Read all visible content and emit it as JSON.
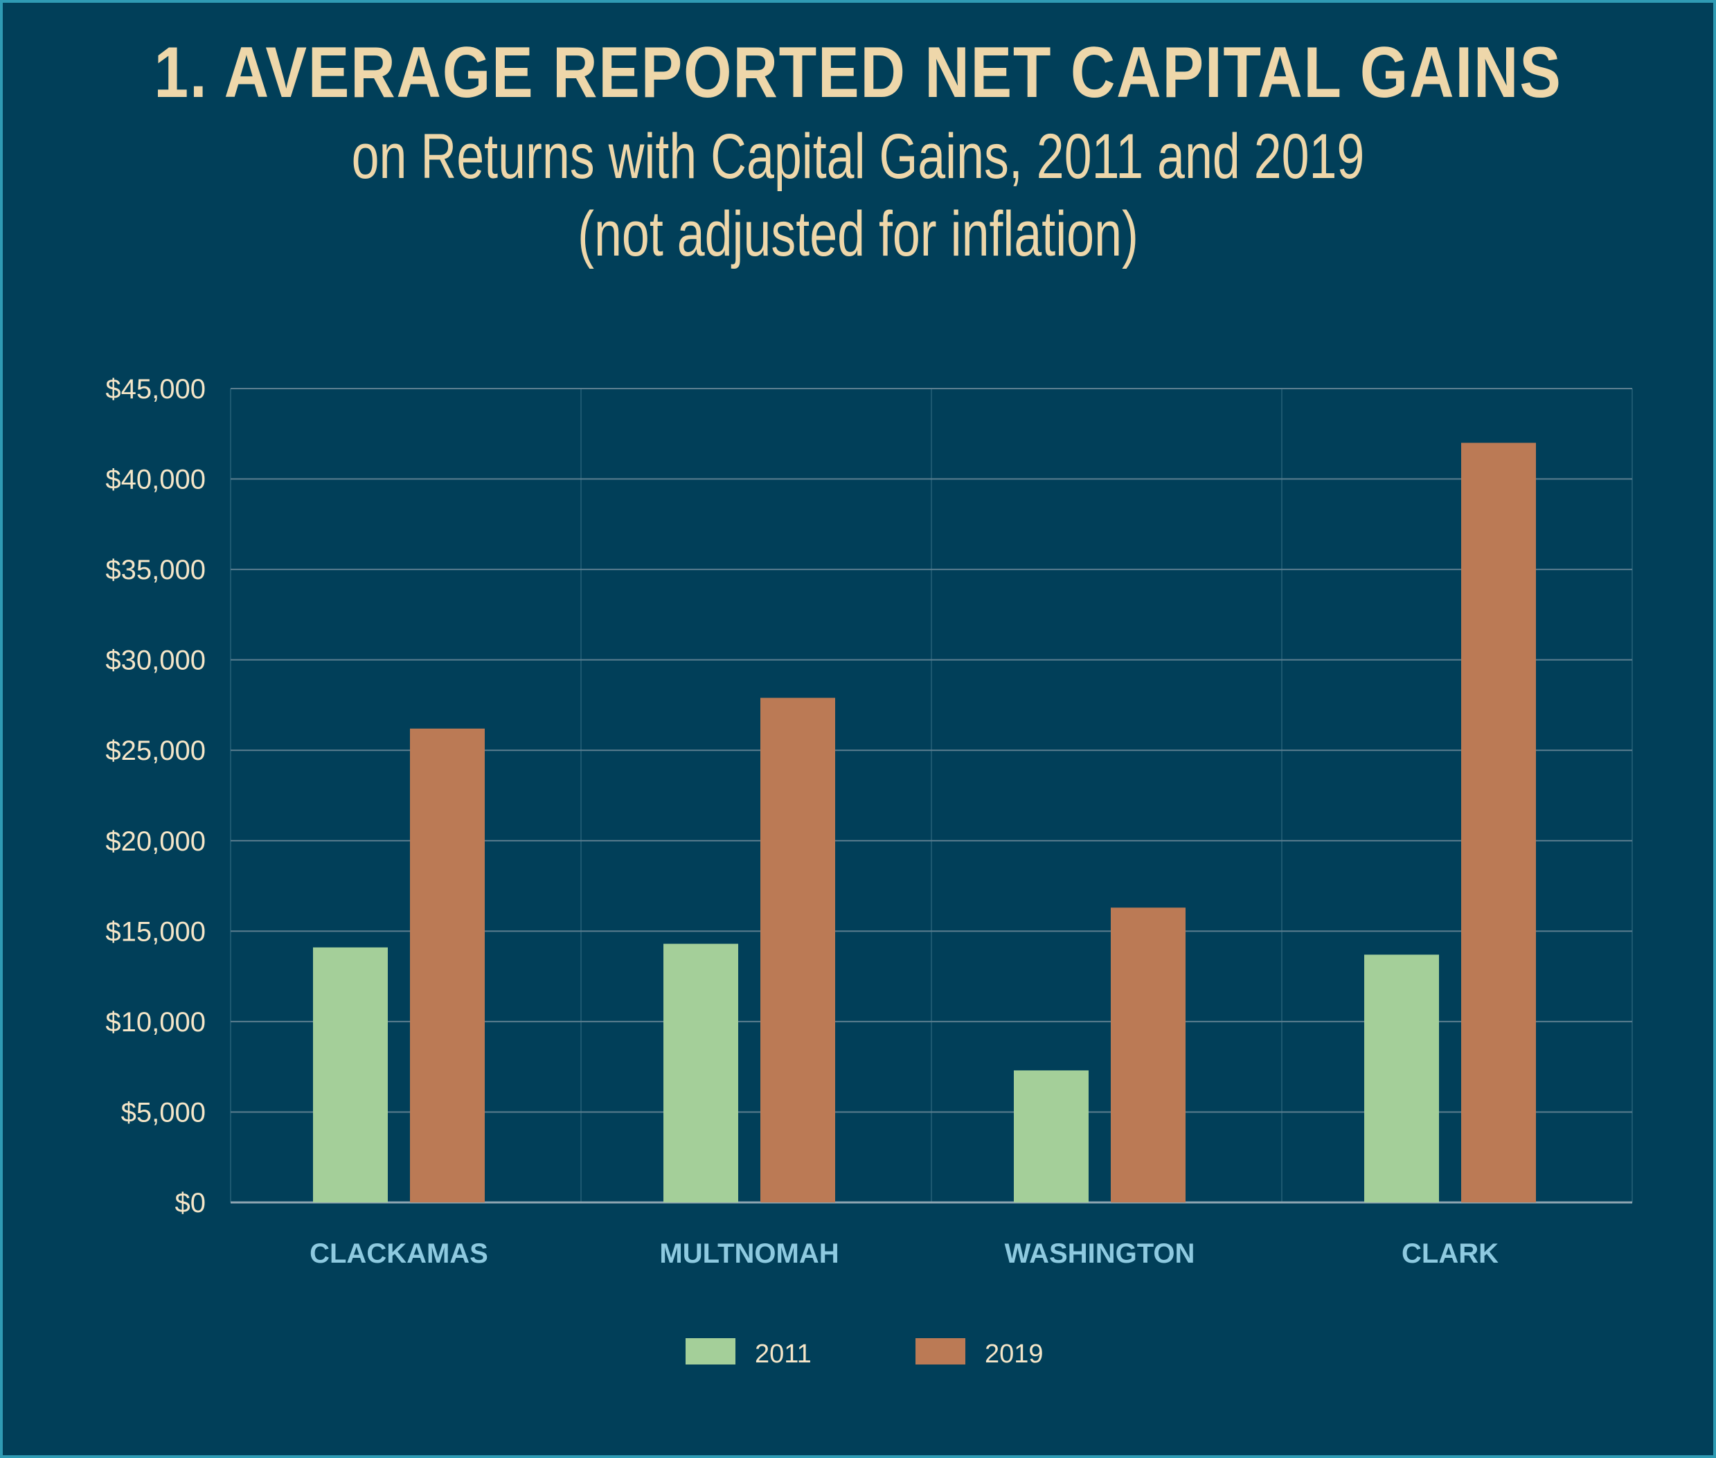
{
  "title": "1. AVERAGE REPORTED NET CAPITAL GAINS",
  "subtitle_line1": "on Returns with Capital Gains, 2011 and 2019",
  "subtitle_line2": "(not adjusted for inflation)",
  "colors": {
    "background": "#013f59",
    "border": "#2f9bb4",
    "title": "#eed7aa",
    "series_2011": "#a4cf99",
    "series_2019": "#bb7a55",
    "gridline": "#5d7f90",
    "category_label": "#8ecae0"
  },
  "chart_data": {
    "type": "bar",
    "categories": [
      "CLACKAMAS",
      "MULTNOMAH",
      "WASHINGTON",
      "CLARK"
    ],
    "series": [
      {
        "name": "2011",
        "values": [
          14100,
          14300,
          7300,
          13700
        ]
      },
      {
        "name": "2019",
        "values": [
          26200,
          27900,
          16300,
          42000
        ]
      }
    ],
    "ylim": [
      0,
      45000
    ],
    "yticks": [
      0,
      5000,
      10000,
      15000,
      20000,
      25000,
      30000,
      35000,
      40000,
      45000
    ],
    "ytick_labels": [
      "$0",
      "$5,000",
      "$10,000",
      "$15,000",
      "$20,000",
      "$25,000",
      "$30,000",
      "$35,000",
      "$40,000",
      "$45,000"
    ],
    "grid": true,
    "legend_position": "bottom-center"
  }
}
